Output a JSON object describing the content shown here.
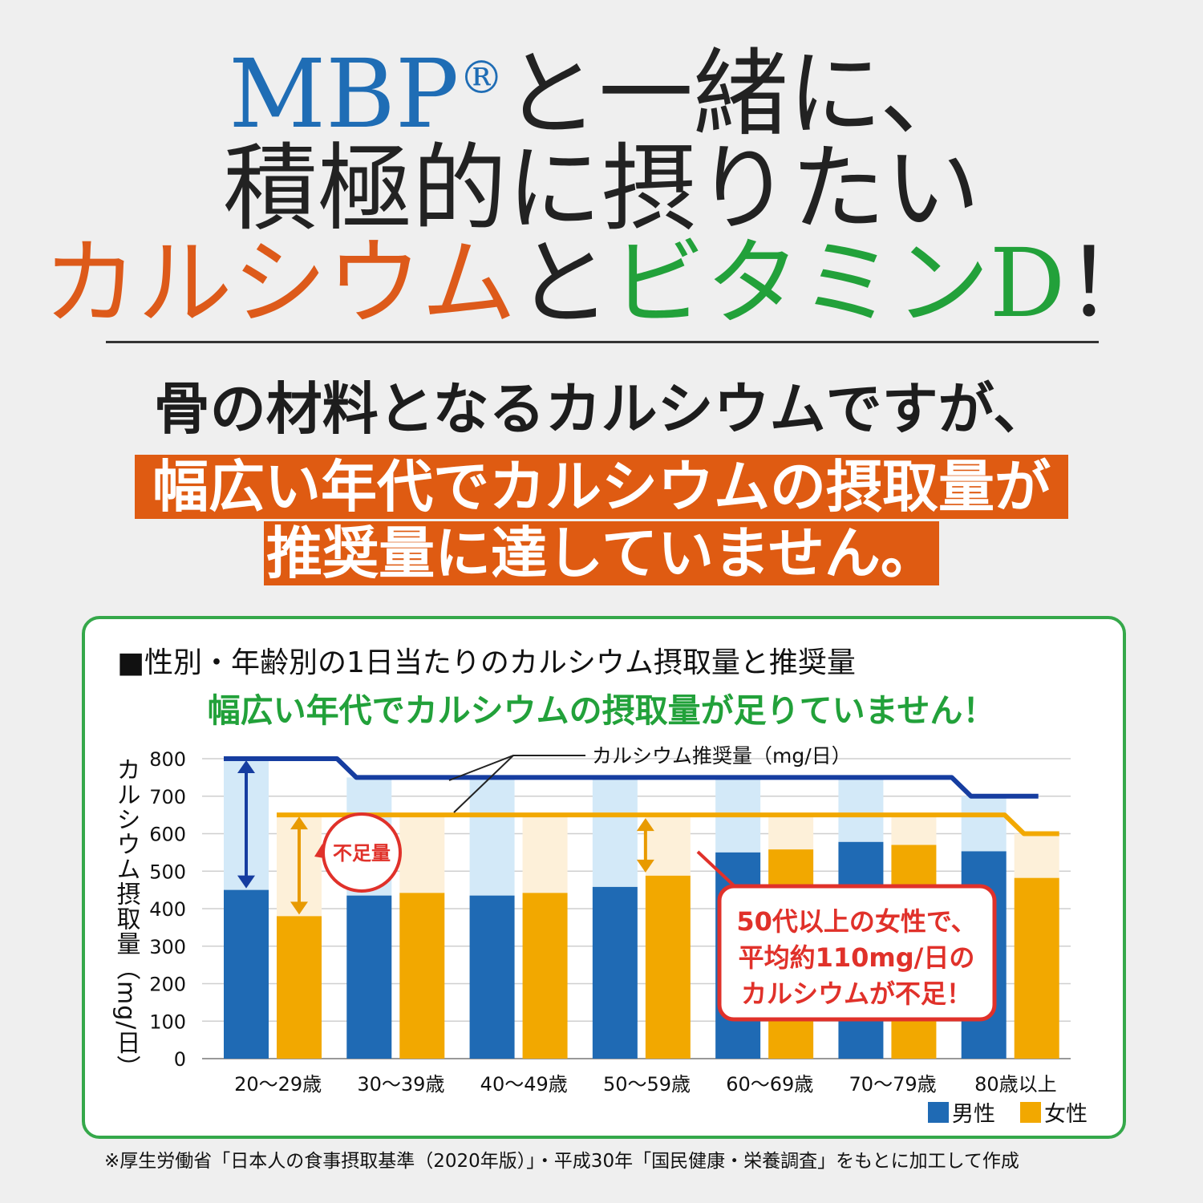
{
  "header": {
    "line1_brand": "MBP",
    "line1_reg": "®",
    "line1_rest": "と一緒に、",
    "line2": "積極的に摂りたい",
    "line3_calcium": "カルシウム",
    "line3_and": "と",
    "line3_vitd": "ビタミンD",
    "line3_excl": "！"
  },
  "lead": "骨の材料となるカルシウムですが、",
  "band": {
    "line1": "幅広い年代でカルシウムの摂取量が",
    "line2": "推奨量に達していません。"
  },
  "colors": {
    "male": "#1f6ab4",
    "female": "#f2a800",
    "male_shortfall": "#d3e9f8",
    "female_shortfall": "#fdf0d9",
    "rec_male_line": "#163da0",
    "rec_female_line": "#f2a800",
    "accent_orange": "#df5b12",
    "accent_green": "#22a13a",
    "callout_red": "#e0312a"
  },
  "chart_data": {
    "type": "bar",
    "title": "■性別・年齢別の1日当たりのカルシウム摂取量と推奨量",
    "subtitle": "幅広い年代でカルシウムの摂取量が足りていません！",
    "ylabel": "カルシウム摂取量（mg/日）",
    "xlabel": "",
    "ylim": [
      0,
      800
    ],
    "yticks": [
      0,
      100,
      200,
      300,
      400,
      500,
      600,
      700,
      800
    ],
    "grid": true,
    "legend_position": "bottom-right",
    "categories": [
      "20〜29歳",
      "30〜39歳",
      "40〜49歳",
      "50〜59歳",
      "60〜69歳",
      "70〜79歳",
      "80歳以上"
    ],
    "series": [
      {
        "name": "男性",
        "values": [
          450,
          435,
          435,
          458,
          550,
          578,
          553
        ]
      },
      {
        "name": "女性",
        "values": [
          380,
          442,
          442,
          488,
          558,
          570,
          482
        ]
      }
    ],
    "recommended": {
      "label": "カルシウム推奨量（mg/日）",
      "male": [
        800,
        750,
        750,
        750,
        750,
        750,
        700
      ],
      "female": [
        650,
        650,
        650,
        650,
        650,
        650,
        600
      ]
    },
    "annotations": {
      "shortfall_label": "不足量",
      "callout": [
        "50代以上の女性で、",
        "平均約110mg/日の",
        "カルシウムが不足！"
      ]
    }
  },
  "footnote": "※厚生労働省「日本人の食事摂取基準（2020年版）」・平成30年「国民健康・栄養調査」をもとに加工して作成"
}
